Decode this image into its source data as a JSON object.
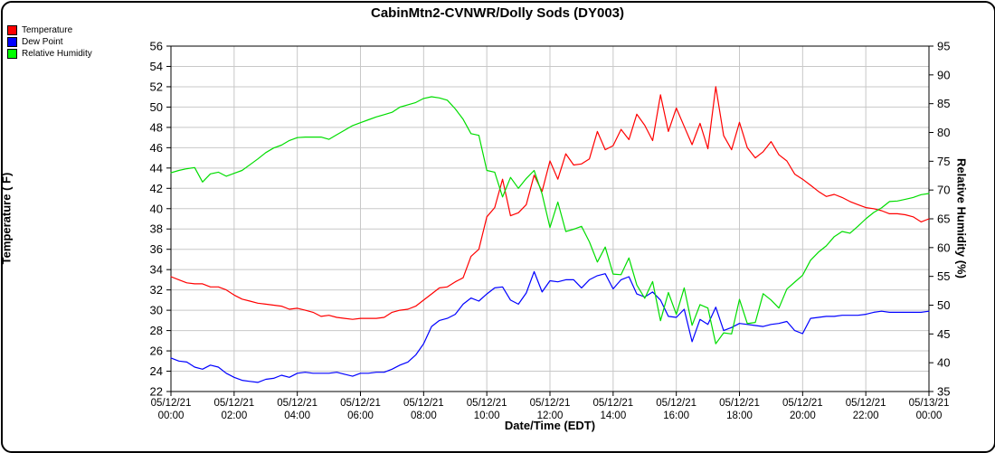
{
  "window": {
    "title": "CabinMtn2-CVNWR/Dolly Sods (DY003)"
  },
  "legend": {
    "items": [
      {
        "label": "Temperature",
        "color": "#ff0000"
      },
      {
        "label": "Dew Point",
        "color": "#0000ff"
      },
      {
        "label": "Relative Humidity",
        "color": "#00ff00"
      }
    ]
  },
  "chart_data": {
    "type": "line",
    "title": "CabinMtn2-CVNWR/Dolly Sods (DY003)",
    "grid": true,
    "legend_position": "top-left",
    "x_axis": {
      "label": "Date/Time (EDT)",
      "start_hour": 0,
      "end_hour": 24,
      "tick_interval_hours": 2,
      "ticks": [
        {
          "date": "05/12/21",
          "time": "00:00"
        },
        {
          "date": "05/12/21",
          "time": "02:00"
        },
        {
          "date": "05/12/21",
          "time": "04:00"
        },
        {
          "date": "05/12/21",
          "time": "06:00"
        },
        {
          "date": "05/12/21",
          "time": "08:00"
        },
        {
          "date": "05/12/21",
          "time": "10:00"
        },
        {
          "date": "05/12/21",
          "time": "12:00"
        },
        {
          "date": "05/12/21",
          "time": "14:00"
        },
        {
          "date": "05/12/21",
          "time": "16:00"
        },
        {
          "date": "05/12/21",
          "time": "18:00"
        },
        {
          "date": "05/12/21",
          "time": "20:00"
        },
        {
          "date": "05/12/21",
          "time": "22:00"
        },
        {
          "date": "05/13/21",
          "time": "00:00"
        }
      ]
    },
    "y_left": {
      "label": "Temperature ( F)",
      "min": 22,
      "max": 56,
      "tick_step": 2
    },
    "y_right": {
      "label": "Relative Humidity (%)",
      "min": 35,
      "max": 95,
      "tick_step": 5
    },
    "sample_interval_minutes": 15,
    "series": [
      {
        "name": "Temperature",
        "color": "#ff0000",
        "axis": "left",
        "values": [
          33.3,
          33.0,
          32.7,
          32.6,
          32.6,
          32.3,
          32.3,
          32.0,
          31.5,
          31.1,
          30.9,
          30.7,
          30.6,
          30.5,
          30.4,
          30.1,
          30.2,
          30.0,
          29.8,
          29.4,
          29.5,
          29.3,
          29.2,
          29.1,
          29.2,
          29.2,
          29.2,
          29.3,
          29.8,
          30.0,
          30.1,
          30.4,
          31.0,
          31.6,
          32.2,
          32.3,
          32.8,
          33.2,
          35.3,
          36.0,
          39.2,
          40.1,
          42.9,
          39.3,
          39.6,
          40.4,
          43.3,
          41.7,
          44.7,
          42.9,
          45.4,
          44.3,
          44.4,
          44.9,
          47.6,
          45.8,
          46.2,
          47.8,
          46.8,
          49.3,
          48.2,
          46.7,
          51.2,
          47.6,
          49.9,
          48.1,
          46.3,
          48.4,
          45.9,
          52.0,
          47.2,
          45.8,
          48.5,
          46.0,
          45.0,
          45.6,
          46.6,
          45.3,
          44.7,
          43.4,
          42.9,
          42.3,
          41.7,
          41.2,
          41.4,
          41.1,
          40.7,
          40.4,
          40.1,
          40.0,
          39.8,
          39.5,
          39.5,
          39.4,
          39.2,
          38.7,
          39.0
        ]
      },
      {
        "name": "Dew Point",
        "color": "#0000ff",
        "axis": "left",
        "values": [
          25.3,
          25.0,
          24.9,
          24.4,
          24.2,
          24.6,
          24.4,
          23.8,
          23.4,
          23.1,
          23.0,
          22.9,
          23.2,
          23.3,
          23.6,
          23.4,
          23.8,
          23.9,
          23.8,
          23.8,
          23.8,
          23.9,
          23.7,
          23.5,
          23.8,
          23.8,
          23.9,
          23.9,
          24.2,
          24.6,
          24.9,
          25.6,
          26.7,
          28.4,
          29.0,
          29.2,
          29.6,
          30.6,
          31.2,
          30.9,
          31.6,
          32.2,
          32.3,
          31.0,
          30.6,
          31.7,
          33.8,
          31.8,
          32.9,
          32.8,
          33.0,
          33.0,
          32.2,
          33.0,
          33.4,
          33.6,
          32.1,
          33.0,
          33.3,
          31.6,
          31.3,
          31.8,
          31.0,
          29.4,
          29.3,
          30.1,
          26.9,
          29.1,
          28.6,
          30.3,
          28.0,
          28.3,
          28.7,
          28.6,
          28.5,
          28.4,
          28.6,
          28.7,
          28.9,
          28.0,
          27.7,
          29.2,
          29.3,
          29.4,
          29.4,
          29.5,
          29.5,
          29.5,
          29.6,
          29.8,
          29.9,
          29.8,
          29.8,
          29.8,
          29.8,
          29.8,
          29.9
        ]
      },
      {
        "name": "Relative Humidity",
        "color": "#00dd00",
        "axis": "right",
        "values": [
          73.0,
          73.4,
          73.7,
          73.9,
          71.4,
          72.8,
          73.1,
          72.4,
          72.9,
          73.4,
          74.4,
          75.4,
          76.5,
          77.3,
          77.8,
          78.6,
          79.1,
          79.2,
          79.2,
          79.2,
          78.8,
          79.6,
          80.4,
          81.2,
          81.7,
          82.2,
          82.7,
          83.1,
          83.5,
          84.4,
          84.8,
          85.2,
          85.9,
          86.2,
          86.0,
          85.6,
          84.1,
          82.3,
          79.8,
          79.5,
          73.4,
          73.1,
          68.8,
          72.2,
          70.3,
          72.0,
          73.4,
          69.3,
          63.5,
          67.9,
          62.8,
          63.2,
          63.7,
          61.0,
          57.5,
          60.1,
          55.4,
          55.3,
          58.2,
          53.5,
          51.2,
          54.1,
          47.3,
          52.2,
          48.4,
          53.0,
          46.5,
          50.1,
          49.5,
          43.3,
          45.2,
          45.0,
          51.0,
          46.8,
          47.0,
          52.0,
          50.9,
          49.5,
          52.8,
          54.0,
          55.2,
          57.8,
          59.2,
          60.3,
          61.9,
          62.8,
          62.5,
          63.7,
          65.0,
          66.1,
          66.9,
          68.0,
          68.1,
          68.4,
          68.7,
          69.2,
          69.4
        ]
      }
    ],
    "colors": {
      "grid": "#c8c8c8",
      "axis": "#000000",
      "background": "#ffffff"
    }
  }
}
